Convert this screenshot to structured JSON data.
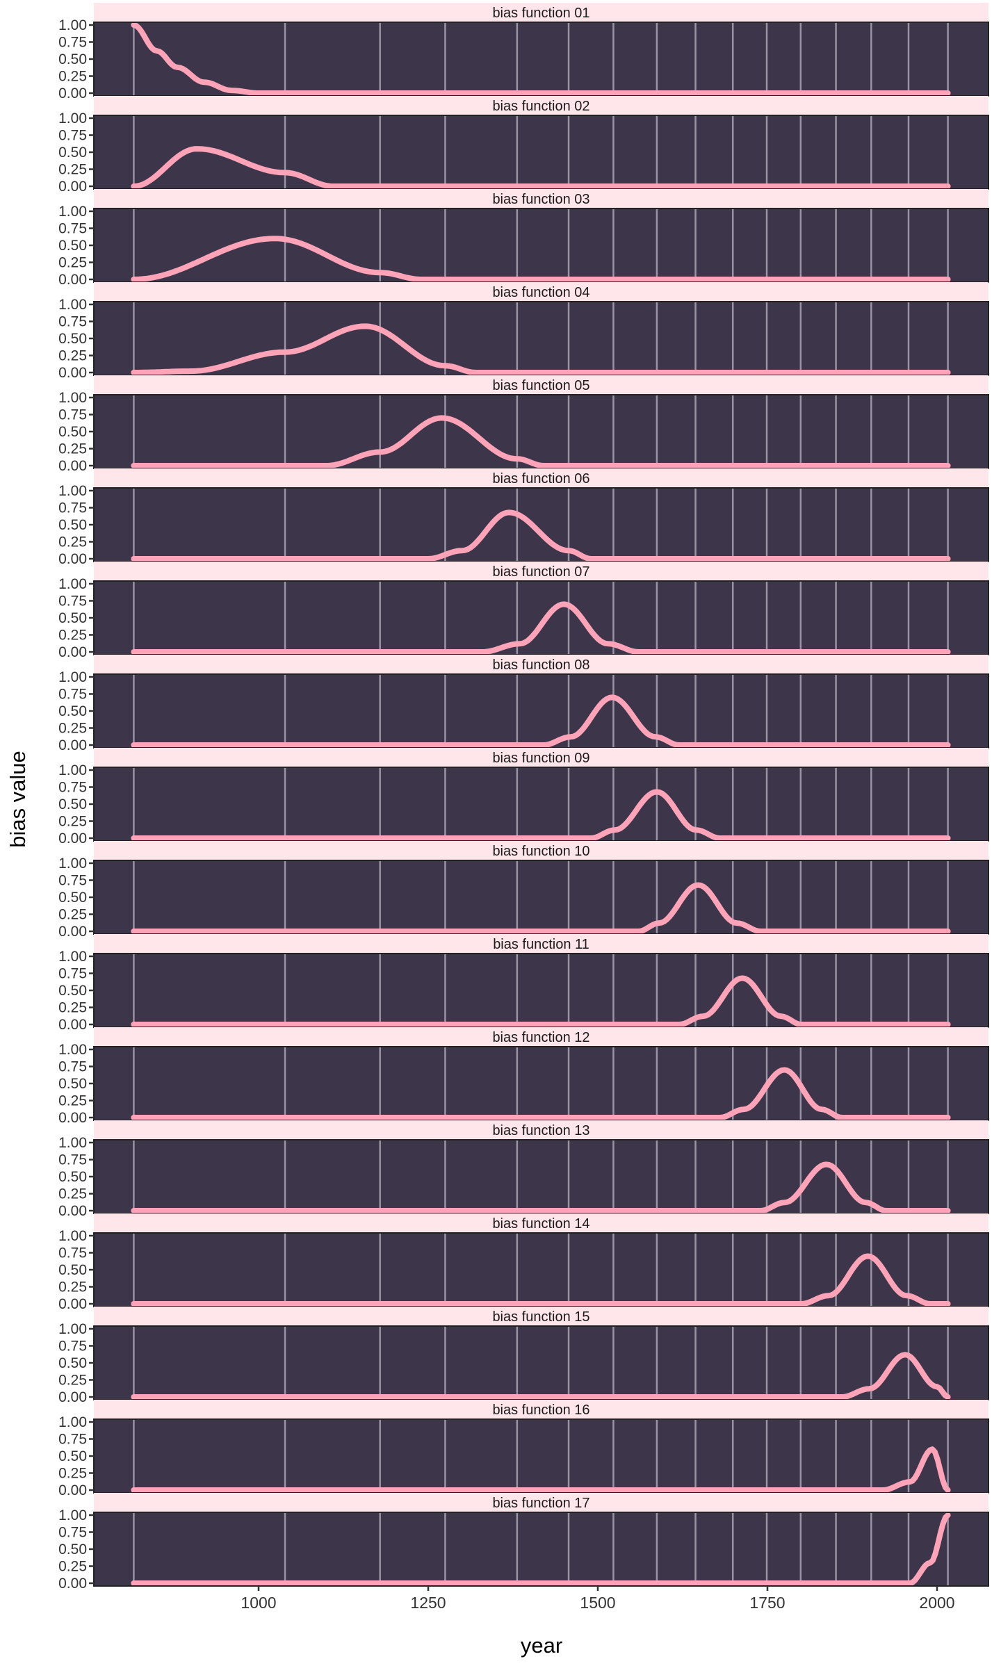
{
  "chart_data": {
    "type": "line",
    "layout": "facets stacked vertically, shared x axis",
    "xlabel": "year",
    "ylabel": "bias value",
    "xlim": [
      800,
      2030
    ],
    "ylim": [
      0,
      1
    ],
    "x_ticks": [
      1000,
      1250,
      1500,
      1750,
      2000
    ],
    "y_ticks": [
      "0.00",
      "0.25",
      "0.50",
      "0.75",
      "1.00"
    ],
    "vertical_gridlines_years": [
      816,
      1039,
      1179,
      1275,
      1381,
      1457,
      1523,
      1587,
      1644,
      1699,
      1749,
      1799,
      1851,
      1903,
      1958,
      2016
    ],
    "grid": true,
    "x_range_of_data": [
      816,
      2016
    ],
    "colors": {
      "strip_background": "#ffe6ea",
      "panel_background": "#3d3549",
      "gridline": "#9a93a3",
      "line": "#ffa3b8",
      "text": "#333333"
    },
    "panels": [
      {
        "title": "bias function 01",
        "points": [
          [
            816,
            1
          ],
          [
            850,
            0.62
          ],
          [
            880,
            0.38
          ],
          [
            920,
            0.16
          ],
          [
            960,
            0.04
          ],
          [
            1000,
            0
          ],
          [
            2016,
            0
          ]
        ]
      },
      {
        "title": "bias function 02",
        "points": [
          [
            816,
            0
          ],
          [
            909,
            0.55
          ],
          [
            1039,
            0.2
          ],
          [
            1110,
            0
          ],
          [
            2016,
            0
          ]
        ]
      },
      {
        "title": "bias function 03",
        "points": [
          [
            816,
            0
          ],
          [
            1024,
            0.6
          ],
          [
            1179,
            0.1
          ],
          [
            1240,
            0
          ],
          [
            2016,
            0
          ]
        ]
      },
      {
        "title": "bias function 04",
        "points": [
          [
            816,
            0
          ],
          [
            900,
            0.02
          ],
          [
            1039,
            0.3
          ],
          [
            1157,
            0.68
          ],
          [
            1275,
            0.1
          ],
          [
            1320,
            0
          ],
          [
            2016,
            0
          ]
        ]
      },
      {
        "title": "bias function 05",
        "points": [
          [
            816,
            0
          ],
          [
            1100,
            0
          ],
          [
            1179,
            0.2
          ],
          [
            1270,
            0.7
          ],
          [
            1381,
            0.1
          ],
          [
            1420,
            0
          ],
          [
            2016,
            0
          ]
        ]
      },
      {
        "title": "bias function 06",
        "points": [
          [
            816,
            0
          ],
          [
            1250,
            0
          ],
          [
            1300,
            0.12
          ],
          [
            1369,
            0.68
          ],
          [
            1457,
            0.12
          ],
          [
            1490,
            0
          ],
          [
            2016,
            0
          ]
        ]
      },
      {
        "title": "bias function 07",
        "points": [
          [
            816,
            0
          ],
          [
            1330,
            0
          ],
          [
            1385,
            0.12
          ],
          [
            1450,
            0.7
          ],
          [
            1515,
            0.12
          ],
          [
            1560,
            0
          ],
          [
            2016,
            0
          ]
        ]
      },
      {
        "title": "bias function 08",
        "points": [
          [
            816,
            0
          ],
          [
            1420,
            0
          ],
          [
            1460,
            0.12
          ],
          [
            1521,
            0.7
          ],
          [
            1585,
            0.12
          ],
          [
            1620,
            0
          ],
          [
            2016,
            0
          ]
        ]
      },
      {
        "title": "bias function 09",
        "points": [
          [
            816,
            0
          ],
          [
            1490,
            0
          ],
          [
            1525,
            0.12
          ],
          [
            1587,
            0.68
          ],
          [
            1645,
            0.12
          ],
          [
            1680,
            0
          ],
          [
            2016,
            0
          ]
        ]
      },
      {
        "title": "bias function 10",
        "points": [
          [
            816,
            0
          ],
          [
            1560,
            0
          ],
          [
            1590,
            0.12
          ],
          [
            1648,
            0.68
          ],
          [
            1705,
            0.12
          ],
          [
            1740,
            0
          ],
          [
            2016,
            0
          ]
        ]
      },
      {
        "title": "bias function 11",
        "points": [
          [
            816,
            0
          ],
          [
            1620,
            0
          ],
          [
            1655,
            0.12
          ],
          [
            1713,
            0.68
          ],
          [
            1770,
            0.12
          ],
          [
            1800,
            0
          ],
          [
            2016,
            0
          ]
        ]
      },
      {
        "title": "bias function 12",
        "points": [
          [
            816,
            0
          ],
          [
            1680,
            0
          ],
          [
            1715,
            0.12
          ],
          [
            1775,
            0.7
          ],
          [
            1830,
            0.12
          ],
          [
            1860,
            0
          ],
          [
            2016,
            0
          ]
        ]
      },
      {
        "title": "bias function 13",
        "points": [
          [
            816,
            0
          ],
          [
            1740,
            0
          ],
          [
            1775,
            0.12
          ],
          [
            1837,
            0.68
          ],
          [
            1895,
            0.12
          ],
          [
            1925,
            0
          ],
          [
            2016,
            0
          ]
        ]
      },
      {
        "title": "bias function 14",
        "points": [
          [
            816,
            0
          ],
          [
            1800,
            0
          ],
          [
            1840,
            0.12
          ],
          [
            1898,
            0.7
          ],
          [
            1955,
            0.12
          ],
          [
            1990,
            0
          ],
          [
            2016,
            0
          ]
        ]
      },
      {
        "title": "bias function 15",
        "points": [
          [
            816,
            0
          ],
          [
            1860,
            0
          ],
          [
            1900,
            0.12
          ],
          [
            1953,
            0.62
          ],
          [
            2000,
            0.15
          ],
          [
            2016,
            0
          ]
        ]
      },
      {
        "title": "bias function 16",
        "points": [
          [
            816,
            0
          ],
          [
            1920,
            0
          ],
          [
            1960,
            0.12
          ],
          [
            1993,
            0.6
          ],
          [
            2016,
            0
          ]
        ]
      },
      {
        "title": "bias function 17",
        "points": [
          [
            816,
            0
          ],
          [
            1960,
            0
          ],
          [
            1990,
            0.3
          ],
          [
            2016,
            1
          ]
        ]
      }
    ]
  }
}
